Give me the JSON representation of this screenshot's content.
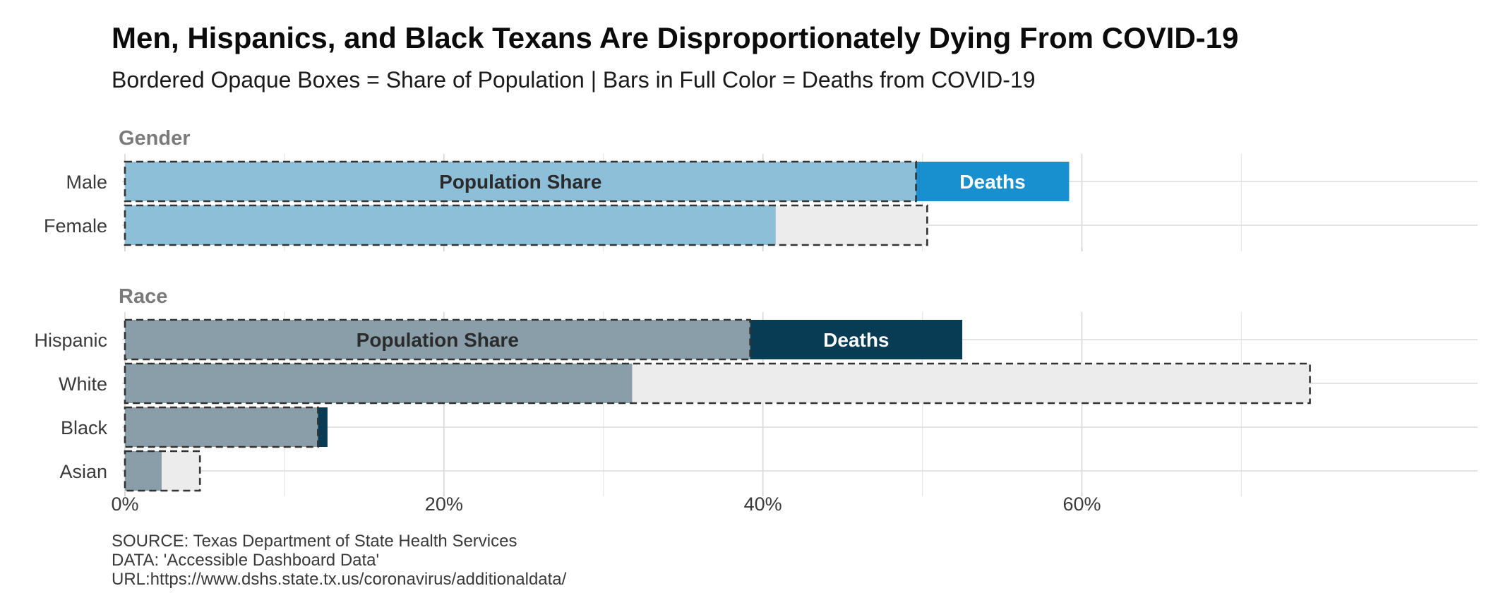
{
  "chart_data": {
    "type": "bar",
    "title": "Men, Hispanics, and Black Texans Are Disproportionately Dying From COVID-19",
    "subtitle": "Bordered Opaque Boxes = Share of Population | Bars in Full Color = Deaths from COVID-19",
    "xlim": [
      0,
      75
    ],
    "x_ticks": [
      0,
      20,
      40,
      60
    ],
    "x_tick_labels": [
      "0%",
      "20%",
      "40%",
      "60%"
    ],
    "grid": true,
    "panels": [
      {
        "facet": "Gender",
        "colors": {
          "population": "#8dbfd9",
          "deaths": "#1890d0",
          "deaths_text": "#ffffff",
          "pop_text": "#2b2b2b"
        },
        "categories": [
          "Male",
          "Female"
        ],
        "series": [
          {
            "name": "Population Share",
            "values": [
              49.6,
              50.3
            ]
          },
          {
            "name": "Deaths",
            "values": [
              59.2,
              40.8
            ]
          }
        ],
        "annotations": {
          "population": "Population Share",
          "deaths": "Deaths"
        }
      },
      {
        "facet": "Race",
        "colors": {
          "population": "#899ea8",
          "deaths": "#083c54",
          "deaths_text": "#ffffff",
          "pop_text": "#2b2b2b"
        },
        "categories": [
          "Hispanic",
          "White",
          "Black",
          "Asian"
        ],
        "series": [
          {
            "name": "Population Share",
            "values": [
              39.2,
              74.3,
              12.1,
              4.7
            ]
          },
          {
            "name": "Deaths",
            "values": [
              52.5,
              31.8,
              12.7,
              2.3
            ]
          }
        ],
        "annotations": {
          "population": "Population Share",
          "deaths": "Deaths"
        }
      }
    ]
  },
  "caption": {
    "source": "SOURCE: Texas Department of State Health Services",
    "data": "DATA: 'Accessible Dashboard Data'",
    "url": "URL:https://www.dshs.state.tx.us/coronavirus/additionaldata/"
  }
}
